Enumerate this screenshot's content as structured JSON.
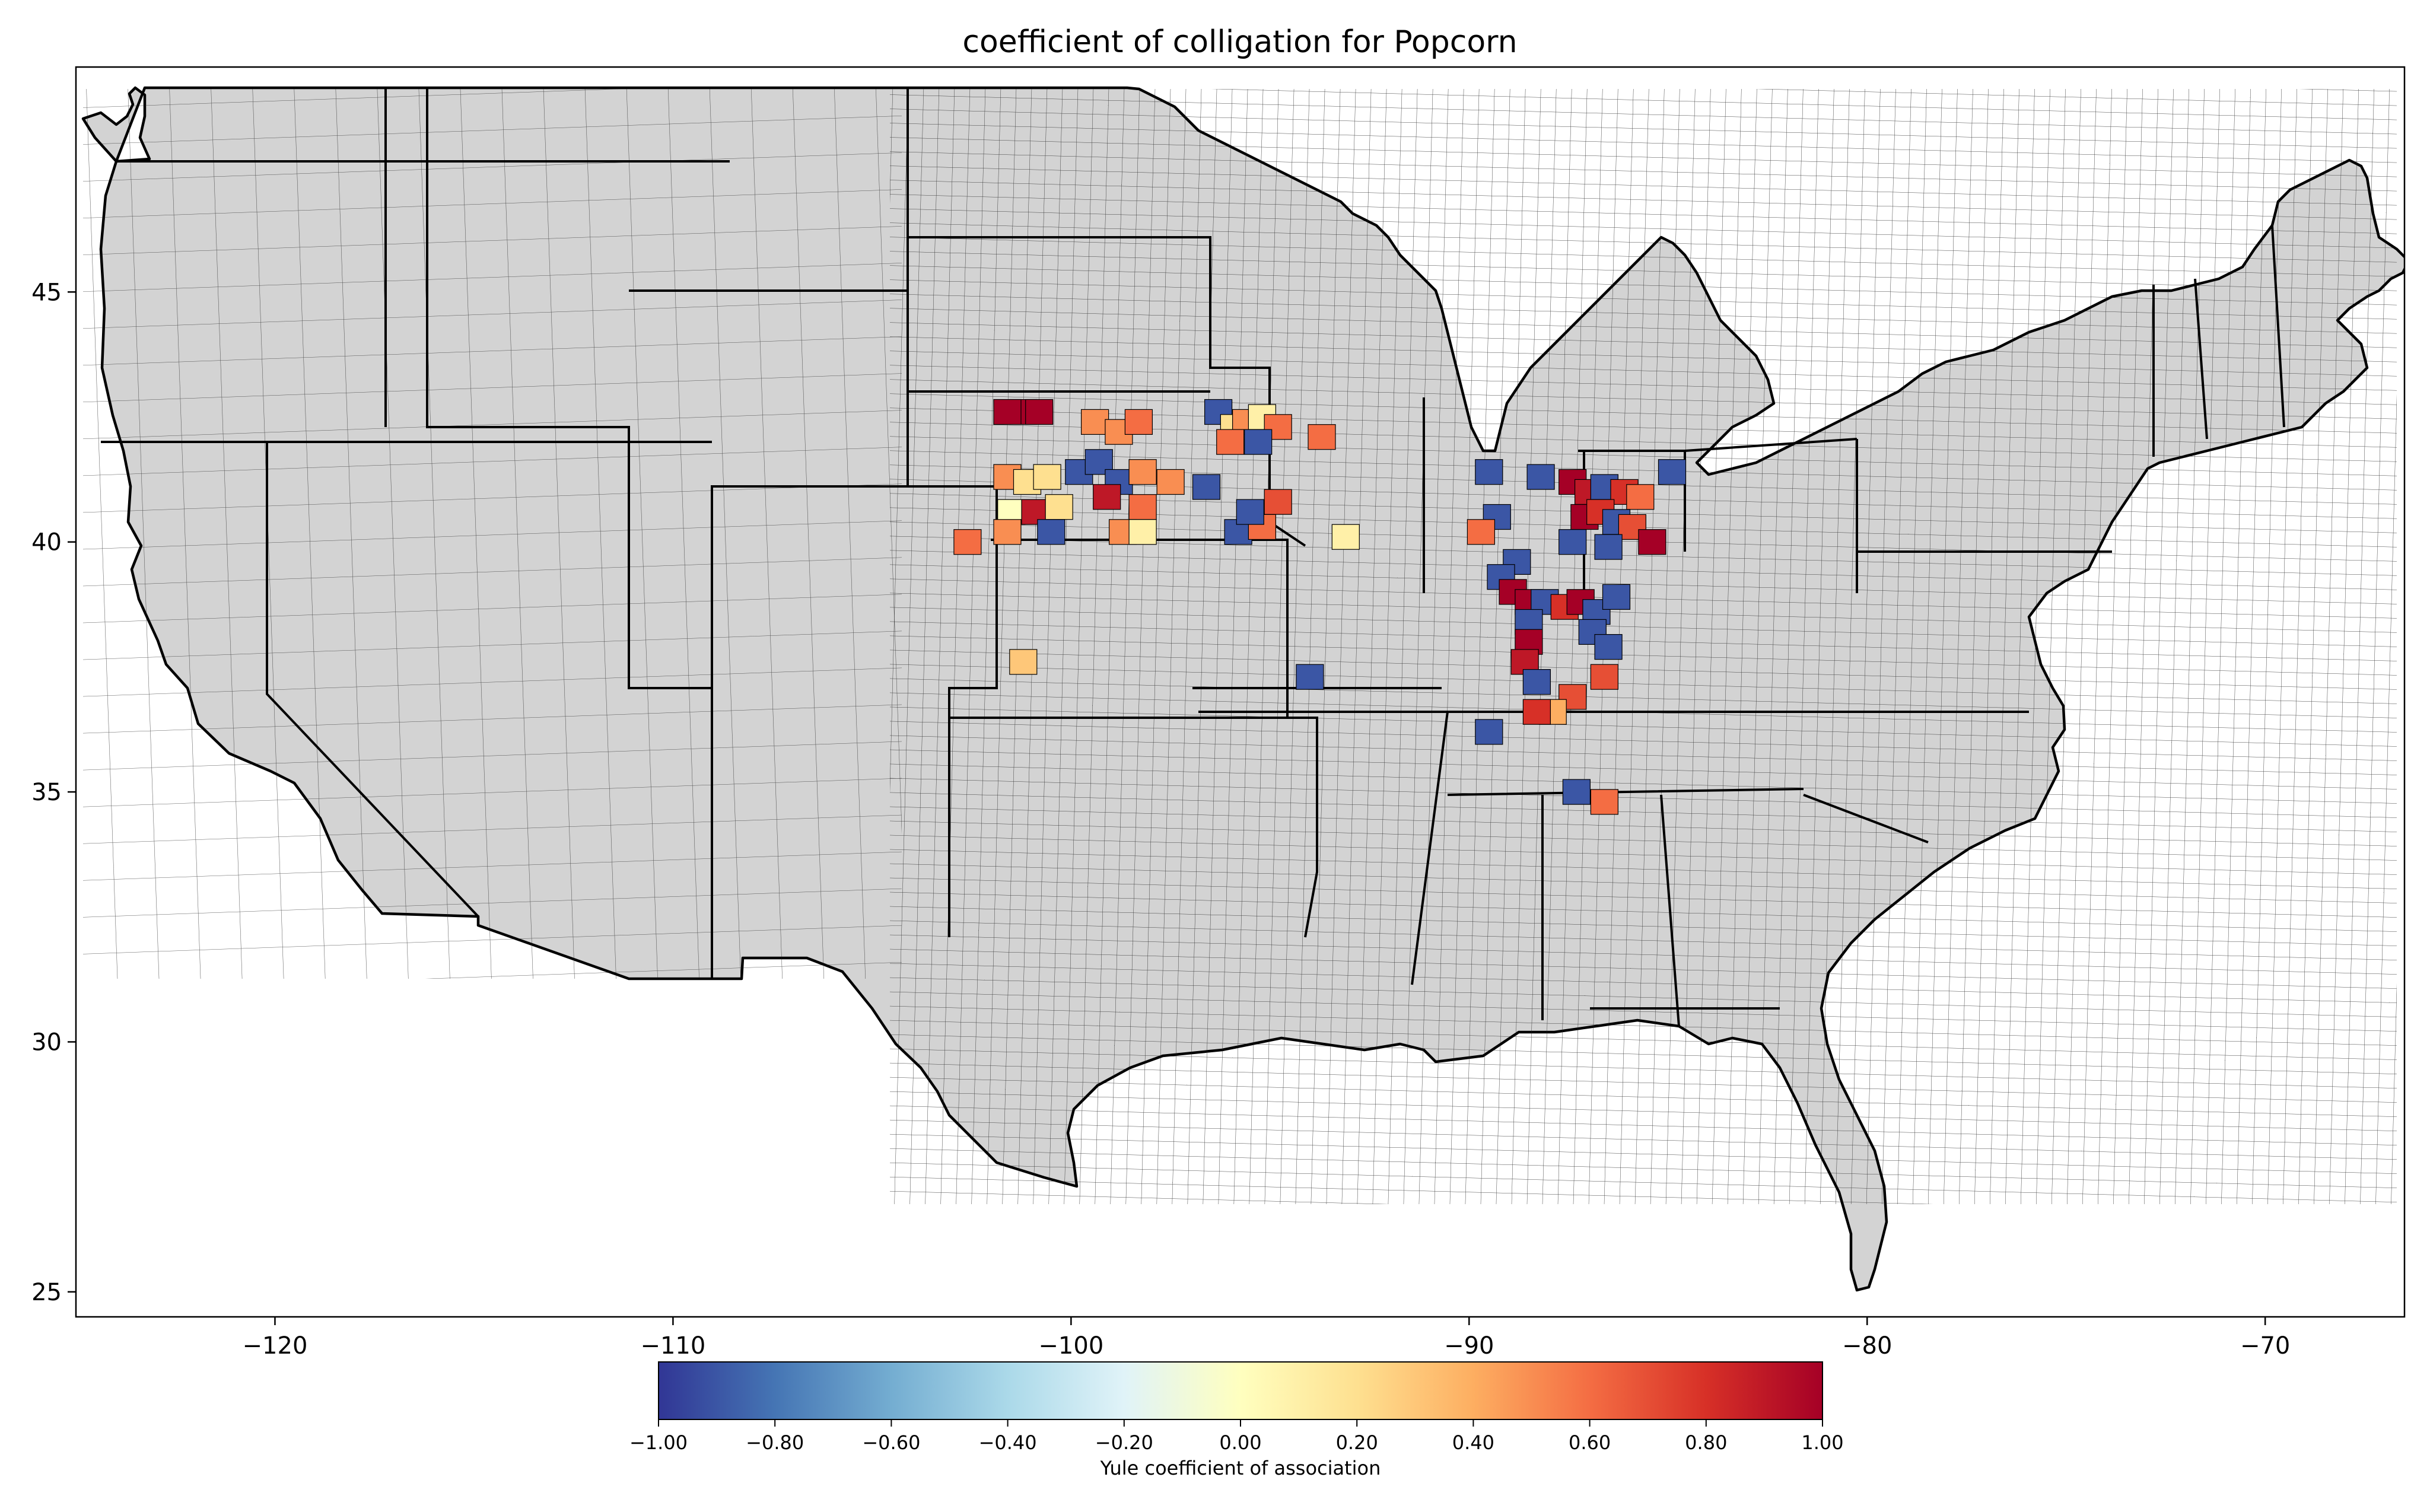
{
  "title": "coefficient of colligation for Popcorn",
  "map": {
    "lon_range": [
      -125.0,
      -66.5
    ],
    "lat_range": [
      24.5,
      49.5
    ],
    "x_ticks": [
      {
        "value": -120,
        "label": "−120"
      },
      {
        "value": -110,
        "label": "−110"
      },
      {
        "value": -100,
        "label": "−100"
      },
      {
        "value": -90,
        "label": "−90"
      },
      {
        "value": -80,
        "label": "−80"
      },
      {
        "value": -70,
        "label": "−70"
      }
    ],
    "y_ticks": [
      {
        "value": 25,
        "label": "25"
      },
      {
        "value": 30,
        "label": "30"
      },
      {
        "value": 35,
        "label": "35"
      },
      {
        "value": 40,
        "label": "40"
      },
      {
        "value": 45,
        "label": "45"
      }
    ],
    "no_data_color": "#d3d3d3",
    "county_edge_color": "#000000",
    "counties_with_data": [
      {
        "lon": -101.2,
        "lat": 42.6,
        "value": 1.0
      },
      {
        "lon": -100.8,
        "lat": 42.6,
        "value": 1.0
      },
      {
        "lon": -101.6,
        "lat": 42.6,
        "value": 1.0
      },
      {
        "lon": -99.4,
        "lat": 42.4,
        "value": 0.5
      },
      {
        "lon": -98.8,
        "lat": 42.2,
        "value": 0.5
      },
      {
        "lon": -98.3,
        "lat": 42.4,
        "value": 0.6
      },
      {
        "lon": -96.3,
        "lat": 42.6,
        "value": -0.9
      },
      {
        "lon": -95.9,
        "lat": 42.3,
        "value": 0.2
      },
      {
        "lon": -95.6,
        "lat": 42.4,
        "value": 0.5
      },
      {
        "lon": -95.2,
        "lat": 42.5,
        "value": 0.1
      },
      {
        "lon": -94.8,
        "lat": 42.3,
        "value": 0.6
      },
      {
        "lon": -96.0,
        "lat": 42.0,
        "value": 0.6
      },
      {
        "lon": -95.3,
        "lat": 42.0,
        "value": -0.9
      },
      {
        "lon": -93.7,
        "lat": 42.1,
        "value": 0.6
      },
      {
        "lon": -101.6,
        "lat": 41.3,
        "value": 0.5
      },
      {
        "lon": -101.1,
        "lat": 41.2,
        "value": 0.2
      },
      {
        "lon": -100.6,
        "lat": 41.3,
        "value": 0.2
      },
      {
        "lon": -99.8,
        "lat": 41.4,
        "value": -0.9
      },
      {
        "lon": -99.3,
        "lat": 41.6,
        "value": -0.9
      },
      {
        "lon": -98.8,
        "lat": 41.2,
        "value": -0.9
      },
      {
        "lon": -98.2,
        "lat": 41.4,
        "value": 0.5
      },
      {
        "lon": -97.5,
        "lat": 41.2,
        "value": 0.5
      },
      {
        "lon": -96.6,
        "lat": 41.1,
        "value": -0.9
      },
      {
        "lon": -99.1,
        "lat": 40.9,
        "value": 0.9
      },
      {
        "lon": -101.5,
        "lat": 40.6,
        "value": 0.0
      },
      {
        "lon": -100.9,
        "lat": 40.6,
        "value": 0.9
      },
      {
        "lon": -100.3,
        "lat": 40.7,
        "value": 0.2
      },
      {
        "lon": -98.2,
        "lat": 40.7,
        "value": 0.6
      },
      {
        "lon": -102.6,
        "lat": 40.0,
        "value": 0.6
      },
      {
        "lon": -101.6,
        "lat": 40.2,
        "value": 0.5
      },
      {
        "lon": -100.5,
        "lat": 40.2,
        "value": -0.9
      },
      {
        "lon": -98.7,
        "lat": 40.2,
        "value": 0.5
      },
      {
        "lon": -98.2,
        "lat": 40.2,
        "value": 0.1
      },
      {
        "lon": -95.8,
        "lat": 40.2,
        "value": -0.9
      },
      {
        "lon": -95.2,
        "lat": 40.3,
        "value": 0.6
      },
      {
        "lon": -94.8,
        "lat": 40.8,
        "value": 0.7
      },
      {
        "lon": -95.5,
        "lat": 40.6,
        "value": -0.9
      },
      {
        "lon": -93.1,
        "lat": 40.1,
        "value": 0.1
      },
      {
        "lon": -101.2,
        "lat": 37.6,
        "value": 0.3
      },
      {
        "lon": -94.0,
        "lat": 37.3,
        "value": -0.9
      },
      {
        "lon": -89.5,
        "lat": 41.4,
        "value": -0.9
      },
      {
        "lon": -88.2,
        "lat": 41.3,
        "value": -0.9
      },
      {
        "lon": -89.3,
        "lat": 40.5,
        "value": -0.9
      },
      {
        "lon": -89.7,
        "lat": 40.2,
        "value": 0.6
      },
      {
        "lon": -88.8,
        "lat": 39.6,
        "value": -0.9
      },
      {
        "lon": -89.2,
        "lat": 39.3,
        "value": -0.9
      },
      {
        "lon": -88.9,
        "lat": 39.0,
        "value": 1.0
      },
      {
        "lon": -88.5,
        "lat": 38.8,
        "value": 1.0
      },
      {
        "lon": -88.1,
        "lat": 38.8,
        "value": -0.9
      },
      {
        "lon": -88.5,
        "lat": 38.4,
        "value": -0.9
      },
      {
        "lon": -88.5,
        "lat": 38.0,
        "value": 1.0
      },
      {
        "lon": -88.6,
        "lat": 37.6,
        "value": 0.9
      },
      {
        "lon": -88.3,
        "lat": 37.2,
        "value": -0.9
      },
      {
        "lon": -87.6,
        "lat": 38.7,
        "value": 0.8
      },
      {
        "lon": -87.2,
        "lat": 38.8,
        "value": 1.0
      },
      {
        "lon": -86.8,
        "lat": 38.6,
        "value": -0.9
      },
      {
        "lon": -86.3,
        "lat": 38.9,
        "value": -0.9
      },
      {
        "lon": -86.9,
        "lat": 38.2,
        "value": -0.9
      },
      {
        "lon": -86.5,
        "lat": 37.9,
        "value": -0.9
      },
      {
        "lon": -86.6,
        "lat": 37.3,
        "value": 0.7
      },
      {
        "lon": -87.4,
        "lat": 36.9,
        "value": 0.7
      },
      {
        "lon": -87.9,
        "lat": 36.6,
        "value": 0.4
      },
      {
        "lon": -88.3,
        "lat": 36.6,
        "value": 0.8
      },
      {
        "lon": -89.5,
        "lat": 36.2,
        "value": -0.9
      },
      {
        "lon": -87.4,
        "lat": 41.2,
        "value": 1.0
      },
      {
        "lon": -87.0,
        "lat": 41.0,
        "value": 0.9
      },
      {
        "lon": -86.6,
        "lat": 41.1,
        "value": -0.9
      },
      {
        "lon": -86.1,
        "lat": 41.0,
        "value": 0.8
      },
      {
        "lon": -85.7,
        "lat": 40.9,
        "value": 0.6
      },
      {
        "lon": -87.1,
        "lat": 40.5,
        "value": 1.0
      },
      {
        "lon": -86.7,
        "lat": 40.6,
        "value": 0.8
      },
      {
        "lon": -86.3,
        "lat": 40.4,
        "value": -0.9
      },
      {
        "lon": -85.9,
        "lat": 40.3,
        "value": 0.7
      },
      {
        "lon": -87.4,
        "lat": 40.0,
        "value": -0.9
      },
      {
        "lon": -86.5,
        "lat": 39.9,
        "value": -0.9
      },
      {
        "lon": -85.4,
        "lat": 40.0,
        "value": 1.0
      },
      {
        "lon": -84.9,
        "lat": 41.4,
        "value": -0.9
      },
      {
        "lon": -87.3,
        "lat": 35.0,
        "value": -0.9
      },
      {
        "lon": -86.6,
        "lat": 34.8,
        "value": 0.6
      }
    ]
  },
  "colorbar": {
    "label": "Yule coefficient of association",
    "min": -1.0,
    "max": 1.0,
    "ticks": [
      {
        "value": -1.0,
        "label": "−1.00"
      },
      {
        "value": -0.8,
        "label": "−0.80"
      },
      {
        "value": -0.6,
        "label": "−0.60"
      },
      {
        "value": -0.4,
        "label": "−0.40"
      },
      {
        "value": -0.2,
        "label": "−0.20"
      },
      {
        "value": 0.0,
        "label": "0.00"
      },
      {
        "value": 0.2,
        "label": "0.20"
      },
      {
        "value": 0.4,
        "label": "0.40"
      },
      {
        "value": 0.6,
        "label": "0.60"
      },
      {
        "value": 0.8,
        "label": "0.80"
      },
      {
        "value": 1.0,
        "label": "1.00"
      }
    ],
    "colormap": [
      "#313695",
      "#4575b4",
      "#74add1",
      "#abd9e9",
      "#e0f3f8",
      "#ffffbf",
      "#fee090",
      "#fdae61",
      "#f46d43",
      "#d73027",
      "#a50026"
    ]
  }
}
